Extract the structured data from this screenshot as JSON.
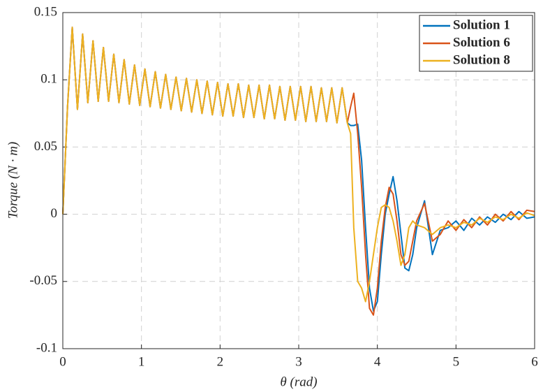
{
  "chart_data": {
    "type": "line",
    "xlabel": "θ (rad)",
    "ylabel": "Torque (N · m)",
    "x": [
      0,
      0.06,
      0.12,
      0.186,
      0.252,
      0.318,
      0.384,
      0.45,
      0.516,
      0.582,
      0.648,
      0.714,
      0.78,
      0.846,
      0.912,
      0.978,
      1.044,
      1.11,
      1.176,
      1.242,
      1.308,
      1.374,
      1.44,
      1.506,
      1.572,
      1.638,
      1.704,
      1.77,
      1.836,
      1.902,
      1.968,
      2.034,
      2.1,
      2.166,
      2.232,
      2.298,
      2.364,
      2.43,
      2.496,
      2.562,
      2.628,
      2.694,
      2.76,
      2.826,
      2.892,
      2.958,
      3.024,
      3.09,
      3.156,
      3.222,
      3.288,
      3.354,
      3.42,
      3.486,
      3.552,
      3.618,
      3.66,
      3.7,
      3.75,
      3.8,
      3.85,
      3.9,
      3.95,
      4.0,
      4.05,
      4.1,
      4.15,
      4.2,
      4.25,
      4.3,
      4.35,
      4.4,
      4.45,
      4.5,
      4.6,
      4.7,
      4.8,
      4.9,
      5.0,
      5.1,
      5.2,
      5.3,
      5.4,
      5.5,
      5.6,
      5.7,
      5.8,
      5.9,
      6.0
    ],
    "series": [
      {
        "name": "Solution 1",
        "color": "#0072bd",
        "values": [
          0,
          0.08,
          0.139,
          0.078,
          0.134,
          0.083,
          0.129,
          0.084,
          0.124,
          0.084,
          0.119,
          0.083,
          0.115,
          0.082,
          0.111,
          0.081,
          0.108,
          0.08,
          0.106,
          0.079,
          0.104,
          0.078,
          0.102,
          0.077,
          0.101,
          0.076,
          0.1,
          0.075,
          0.099,
          0.074,
          0.098,
          0.073,
          0.097,
          0.073,
          0.097,
          0.072,
          0.096,
          0.072,
          0.096,
          0.071,
          0.096,
          0.071,
          0.095,
          0.07,
          0.095,
          0.07,
          0.095,
          0.069,
          0.095,
          0.069,
          0.094,
          0.069,
          0.094,
          0.068,
          0.094,
          0.068,
          0.066,
          0.066,
          0.067,
          0.04,
          -0.01,
          -0.055,
          -0.072,
          -0.065,
          -0.03,
          0.0,
          0.015,
          0.028,
          0.01,
          -0.015,
          -0.04,
          -0.042,
          -0.03,
          -0.01,
          0.01,
          -0.03,
          -0.012,
          -0.01,
          -0.005,
          -0.012,
          -0.003,
          -0.008,
          -0.002,
          -0.006,
          0.0,
          -0.004,
          0.002,
          -0.003,
          -0.002
        ]
      },
      {
        "name": "Solution 6",
        "color": "#d95319",
        "values": [
          0,
          0.08,
          0.139,
          0.078,
          0.134,
          0.083,
          0.129,
          0.084,
          0.124,
          0.084,
          0.119,
          0.083,
          0.115,
          0.082,
          0.111,
          0.081,
          0.108,
          0.08,
          0.106,
          0.079,
          0.104,
          0.078,
          0.102,
          0.077,
          0.101,
          0.076,
          0.1,
          0.075,
          0.099,
          0.074,
          0.098,
          0.073,
          0.097,
          0.073,
          0.097,
          0.072,
          0.096,
          0.072,
          0.096,
          0.071,
          0.096,
          0.071,
          0.095,
          0.07,
          0.095,
          0.07,
          0.095,
          0.069,
          0.095,
          0.069,
          0.094,
          0.069,
          0.094,
          0.068,
          0.094,
          0.068,
          0.08,
          0.09,
          0.06,
          0.02,
          -0.03,
          -0.07,
          -0.075,
          -0.055,
          -0.02,
          0.005,
          0.02,
          0.015,
          -0.005,
          -0.03,
          -0.038,
          -0.035,
          -0.02,
          -0.005,
          0.008,
          -0.02,
          -0.015,
          -0.005,
          -0.012,
          -0.004,
          -0.01,
          -0.002,
          -0.008,
          0.0,
          -0.005,
          0.002,
          -0.004,
          0.003,
          0.002
        ]
      },
      {
        "name": "Solution 8",
        "color": "#edb120",
        "values": [
          0,
          0.08,
          0.139,
          0.078,
          0.134,
          0.083,
          0.129,
          0.084,
          0.124,
          0.084,
          0.119,
          0.083,
          0.115,
          0.082,
          0.111,
          0.081,
          0.108,
          0.08,
          0.106,
          0.079,
          0.104,
          0.078,
          0.102,
          0.077,
          0.101,
          0.076,
          0.1,
          0.075,
          0.099,
          0.074,
          0.098,
          0.073,
          0.097,
          0.073,
          0.097,
          0.072,
          0.096,
          0.072,
          0.096,
          0.071,
          0.096,
          0.071,
          0.095,
          0.07,
          0.095,
          0.07,
          0.095,
          0.069,
          0.095,
          0.069,
          0.094,
          0.069,
          0.094,
          0.068,
          0.094,
          0.068,
          0.06,
          -0.01,
          -0.05,
          -0.055,
          -0.065,
          -0.05,
          -0.03,
          -0.01,
          0.005,
          0.007,
          0.005,
          -0.005,
          -0.02,
          -0.038,
          -0.03,
          -0.01,
          -0.005,
          -0.008,
          -0.01,
          -0.015,
          -0.01,
          -0.008,
          -0.01,
          -0.006,
          -0.008,
          -0.003,
          -0.006,
          -0.002,
          -0.004,
          0.0,
          -0.003,
          0.001,
          -0.001
        ]
      }
    ],
    "xlim": [
      0,
      6
    ],
    "xticks": [
      0,
      1,
      2,
      3,
      4,
      5,
      6
    ],
    "ylim": [
      -0.1,
      0.15
    ],
    "yticks": [
      -0.1,
      -0.05,
      0,
      0.05,
      0.1,
      0.15
    ],
    "grid": true,
    "legend": "upper right"
  }
}
